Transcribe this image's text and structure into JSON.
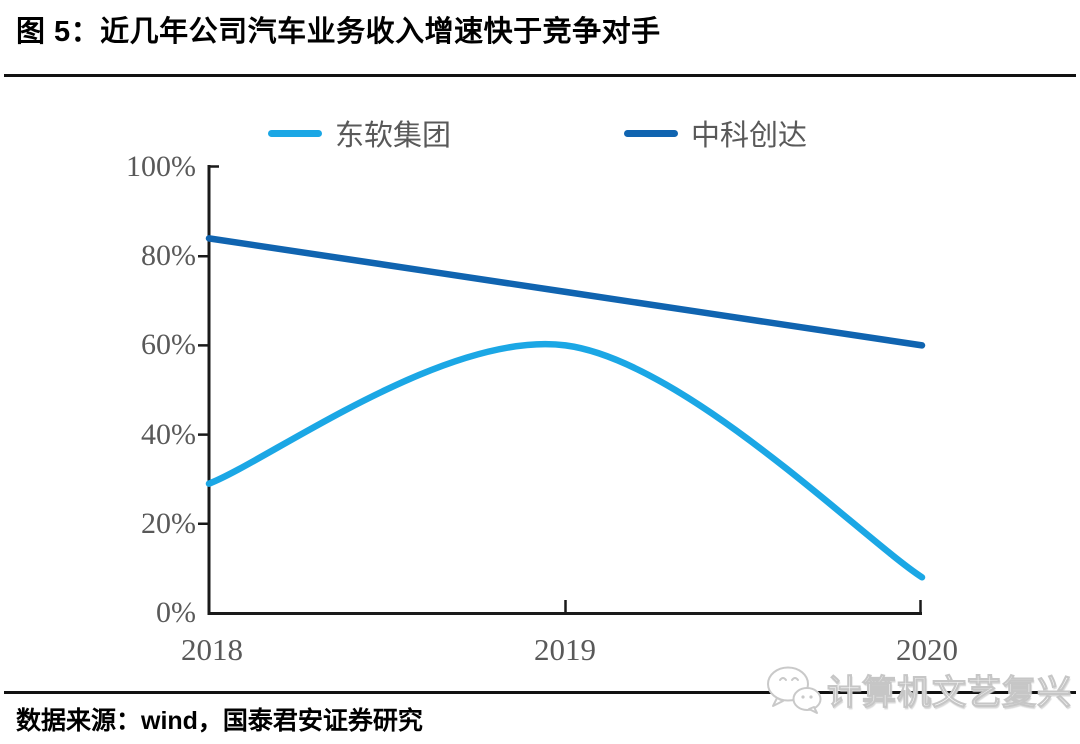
{
  "title": "图 5：近几年公司汽车业务收入增速快于竞争对手",
  "source_note": "数据来源：wind，国泰君安证券研究",
  "watermark": {
    "label": "计算机文艺复兴",
    "icon": "wechat-icon"
  },
  "colors": {
    "series_light_blue": "#1BA7E5",
    "series_dark_blue": "#1064B0",
    "axis": "#1a1a1a",
    "tick_label": "#595959",
    "rule": "#111111"
  },
  "chart_data": {
    "type": "line",
    "x": [
      2018,
      2019,
      2020
    ],
    "x_tick_labels": [
      "2018",
      "2019",
      "2020"
    ],
    "y_ticks": [
      "0%",
      "20%",
      "40%",
      "60%",
      "80%",
      "100%"
    ],
    "ylim": [
      0,
      100
    ],
    "grid": false,
    "legend_position": "top",
    "smooth": true,
    "series": [
      {
        "name": "中科创达",
        "color": "#1064B0",
        "values": [
          84,
          72,
          60
        ]
      },
      {
        "name": "东软集团",
        "color": "#1BA7E5",
        "values": [
          29,
          60,
          8
        ]
      }
    ]
  }
}
